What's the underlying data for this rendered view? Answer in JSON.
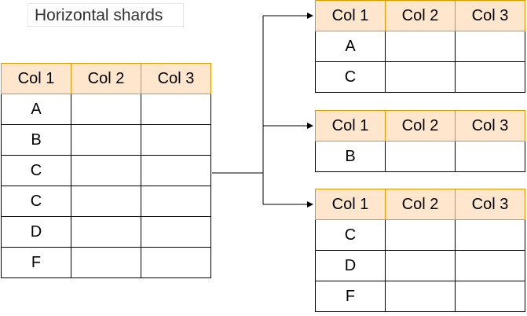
{
  "title": "Horizontal shards",
  "columns": [
    "Col 1",
    "Col 2",
    "Col 3"
  ],
  "source_table": {
    "rows": [
      "A",
      "B",
      "C",
      "C",
      "D",
      "F"
    ]
  },
  "shards": [
    {
      "rows": [
        "A",
        "C"
      ]
    },
    {
      "rows": [
        "B"
      ]
    },
    {
      "rows": [
        "C",
        "D",
        "F"
      ]
    }
  ],
  "colors": {
    "header_fill": "#ffe6cc",
    "header_border": "#d79b00",
    "line": "#000000"
  }
}
